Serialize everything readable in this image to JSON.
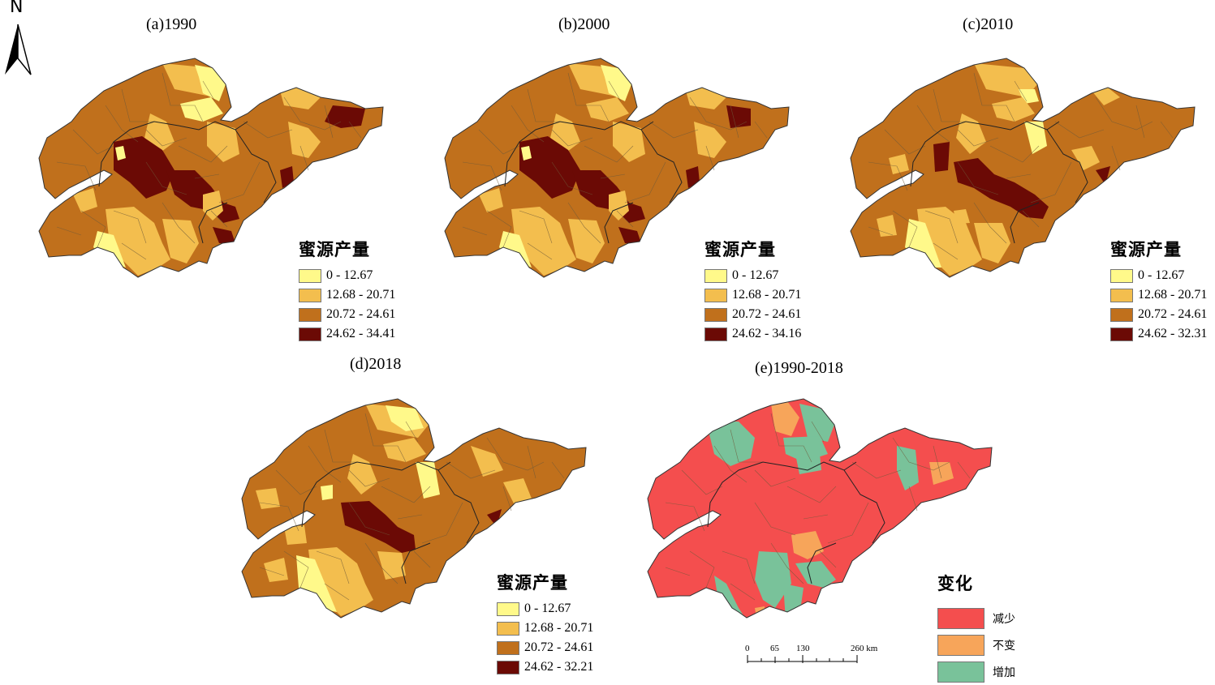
{
  "compass": {
    "letter": "N",
    "icon": "north-arrow-icon"
  },
  "panels": [
    {
      "title": "(a)1990",
      "legend": {
        "title": "蜜源产量",
        "classes": [
          {
            "label": "0 - 12.67",
            "color": "#fff98a"
          },
          {
            "label": "12.68 - 20.71",
            "color": "#f3be4e"
          },
          {
            "label": "20.72 - 24.61",
            "color": "#c0701c"
          },
          {
            "label": "24.62 - 34.41",
            "color": "#6b0a05"
          }
        ]
      }
    },
    {
      "title": "(b)2000",
      "legend": {
        "title": "蜜源产量",
        "classes": [
          {
            "label": "0 - 12.67",
            "color": "#fff98a"
          },
          {
            "label": "12.68 - 20.71",
            "color": "#f3be4e"
          },
          {
            "label": "20.72 - 24.61",
            "color": "#c0701c"
          },
          {
            "label": "24.62 - 34.16",
            "color": "#6b0a05"
          }
        ]
      }
    },
    {
      "title": "(c)2010",
      "legend": {
        "title": "蜜源产量",
        "classes": [
          {
            "label": "0 - 12.67",
            "color": "#fff98a"
          },
          {
            "label": "12.68 - 20.71",
            "color": "#f3be4e"
          },
          {
            "label": "20.72 - 24.61",
            "color": "#c0701c"
          },
          {
            "label": "24.62 - 32.31",
            "color": "#6b0a05"
          }
        ]
      }
    },
    {
      "title": "(d)2018",
      "legend": {
        "title": "蜜源产量",
        "classes": [
          {
            "label": "0 - 12.67",
            "color": "#fff98a"
          },
          {
            "label": "12.68 - 20.71",
            "color": "#f3be4e"
          },
          {
            "label": "20.72 - 24.61",
            "color": "#c0701c"
          },
          {
            "label": "24.62 - 32.21",
            "color": "#6b0a05"
          }
        ]
      }
    },
    {
      "title": "(e)1990-2018",
      "legend": {
        "title": "变化",
        "classes": [
          {
            "label": "减少",
            "color": "#f44e4e"
          },
          {
            "label": "不变",
            "color": "#f7a55a"
          },
          {
            "label": "增加",
            "color": "#79c29a"
          }
        ]
      }
    }
  ],
  "scalebar": {
    "ticks": [
      "0",
      "65",
      "130",
      "260 km"
    ]
  }
}
